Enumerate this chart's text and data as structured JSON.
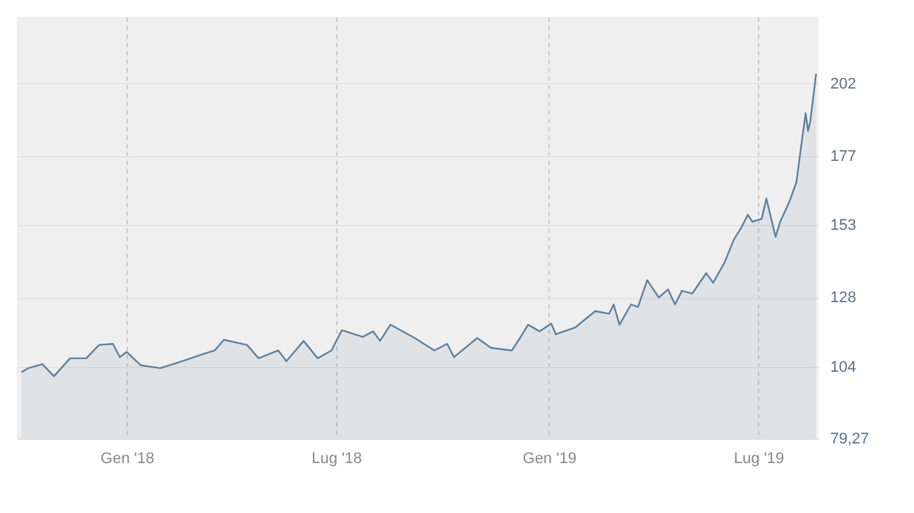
{
  "chart_data": {
    "type": "area",
    "x": [
      "2017-10-02",
      "2017-10-08",
      "2017-10-20",
      "2017-10-30",
      "2017-11-13",
      "2017-11-27",
      "2017-12-08",
      "2017-12-20",
      "2017-12-26",
      "2018-01-01",
      "2018-01-13",
      "2018-01-30",
      "2018-02-18",
      "2018-03-07",
      "2018-03-18",
      "2018-03-26",
      "2018-04-15",
      "2018-04-25",
      "2018-05-12",
      "2018-05-19",
      "2018-06-03",
      "2018-06-15",
      "2018-06-27",
      "2018-07-06",
      "2018-07-24",
      "2018-08-02",
      "2018-08-08",
      "2018-08-17",
      "2018-09-07",
      "2018-09-24",
      "2018-10-05",
      "2018-10-11",
      "2018-10-31",
      "2018-11-12",
      "2018-11-30",
      "2018-12-07",
      "2018-12-14",
      "2018-12-24",
      "2019-01-03",
      "2019-01-07",
      "2019-01-24",
      "2019-02-10",
      "2019-02-22",
      "2019-02-26",
      "2019-03-03",
      "2019-03-13",
      "2019-03-19",
      "2019-03-27",
      "2019-04-06",
      "2019-04-14",
      "2019-04-20",
      "2019-04-26",
      "2019-05-05",
      "2019-05-17",
      "2019-05-23",
      "2019-06-02",
      "2019-06-10",
      "2019-06-16",
      "2019-06-22",
      "2019-06-26",
      "2019-07-04",
      "2019-07-08",
      "2019-07-16",
      "2019-07-20",
      "2019-07-28",
      "2019-08-03",
      "2019-08-07",
      "2019-08-11",
      "2019-08-13",
      "2019-08-15",
      "2019-08-20"
    ],
    "series": [
      {
        "color": "#5d7f9e",
        "values": [
          102.2,
          103.6,
          105,
          100.8,
          107,
          107,
          111.6,
          112,
          107.4,
          109.2,
          104.6,
          103.6,
          106,
          108.3,
          109.7,
          113.4,
          111.6,
          107,
          109.7,
          106,
          113,
          107,
          109.7,
          116.7,
          114.4,
          116.3,
          113,
          118.6,
          114,
          109.7,
          112,
          107.4,
          114,
          110.6,
          109.7,
          114,
          118.6,
          116.3,
          119,
          115.3,
          117.7,
          123.3,
          122.4,
          125.6,
          118.6,
          125.6,
          124.7,
          134,
          128,
          130.8,
          125.6,
          130.3,
          129.4,
          136.4,
          133.1,
          140.2,
          148.1,
          151.9,
          156.6,
          154.2,
          155.2,
          162.2,
          149,
          154.2,
          161.2,
          167.8,
          180,
          191.7,
          185.6,
          188.9,
          205.3
        ]
      }
    ],
    "xlim": [
      "2017-09-28",
      "2019-08-22"
    ],
    "xticks": [
      {
        "value": "2018-01-01",
        "label": "Gen '18"
      },
      {
        "value": "2018-07-01",
        "label": "Lug '18"
      },
      {
        "value": "2019-01-01",
        "label": "Gen '19"
      },
      {
        "value": "2019-07-01",
        "label": "Lug '19"
      }
    ],
    "ylim": [
      79.27,
      225
    ],
    "yticks": [
      {
        "value": 79.27,
        "label": "79,27"
      },
      104,
      128,
      153,
      177,
      202
    ],
    "grid": true
  }
}
